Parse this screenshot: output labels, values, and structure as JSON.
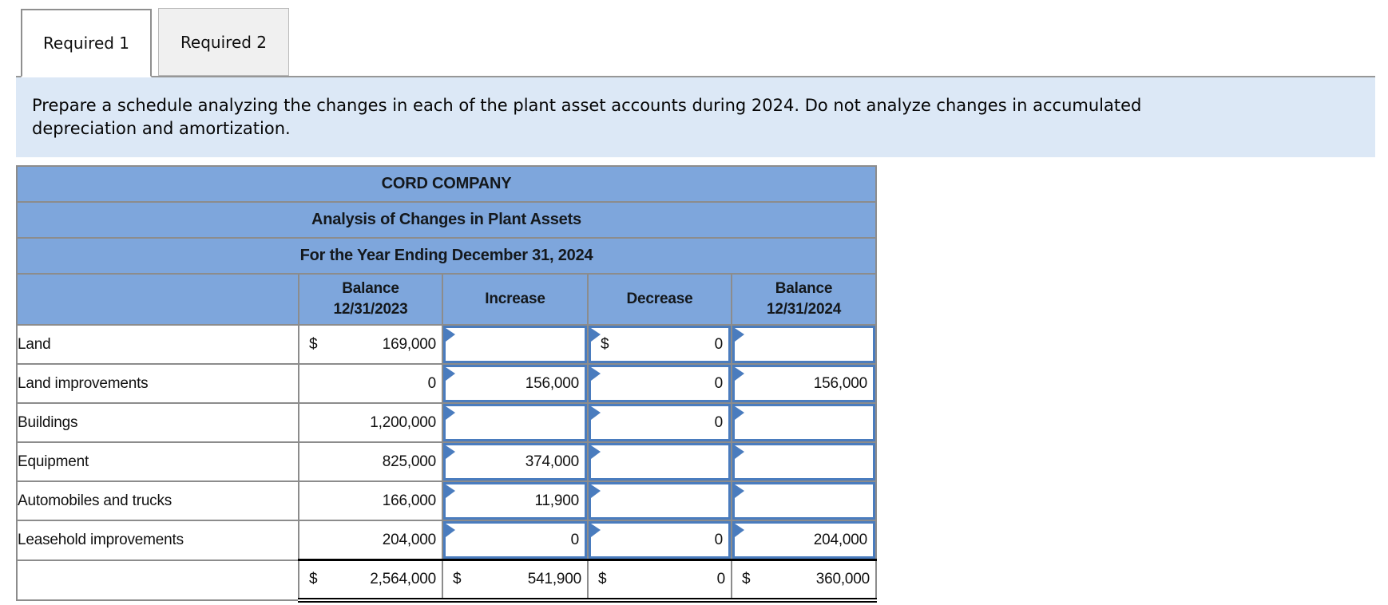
{
  "tabs": {
    "items": [
      {
        "label": "Required 1",
        "active": true
      },
      {
        "label": "Required 2",
        "active": false
      }
    ]
  },
  "instruction": {
    "text": "Prepare a schedule analyzing the changes in each of the plant asset accounts during 2024. Do not analyze changes in accumulated depreciation and amortization."
  },
  "colors": {
    "header_blue": "#7ea6dc",
    "instruction_bg": "#dce8f6",
    "input_border_blue": "#4a7cbe",
    "grid_gray": "#8c8c8c",
    "inactive_tab_bg": "#f0f0f0",
    "total_rule_black": "#000000"
  },
  "table": {
    "title_rows": [
      "CORD COMPANY",
      "Analysis of Changes in Plant Assets",
      "For the Year Ending December 31, 2024"
    ],
    "columns": [
      {
        "line1": "",
        "line2": ""
      },
      {
        "line1": "Balance",
        "line2": "12/31/2023"
      },
      {
        "line1": "Increase",
        "line2": ""
      },
      {
        "line1": "Decrease",
        "line2": ""
      },
      {
        "line1": "Balance",
        "line2": "12/31/2024"
      }
    ],
    "col_keys": [
      "balance-12-31-2023",
      "increase",
      "decrease",
      "balance-12-31-2024"
    ],
    "rows": [
      {
        "label": "Land",
        "cells": [
          {
            "kind": "static",
            "dollar": "$",
            "value": "169,000"
          },
          {
            "kind": "input",
            "dollar": "",
            "value": ""
          },
          {
            "kind": "input",
            "dollar": "$",
            "value": "0"
          },
          {
            "kind": "input",
            "dollar": "",
            "value": ""
          }
        ]
      },
      {
        "label": "Land improvements",
        "cells": [
          {
            "kind": "static",
            "dollar": "",
            "value": "0"
          },
          {
            "kind": "input",
            "dollar": "",
            "value": "156,000"
          },
          {
            "kind": "input",
            "dollar": "",
            "value": "0"
          },
          {
            "kind": "input",
            "dollar": "",
            "value": "156,000"
          }
        ]
      },
      {
        "label": "Buildings",
        "cells": [
          {
            "kind": "static",
            "dollar": "",
            "value": "1,200,000"
          },
          {
            "kind": "input",
            "dollar": "",
            "value": ""
          },
          {
            "kind": "input",
            "dollar": "",
            "value": "0"
          },
          {
            "kind": "input",
            "dollar": "",
            "value": ""
          }
        ]
      },
      {
        "label": "Equipment",
        "cells": [
          {
            "kind": "static",
            "dollar": "",
            "value": "825,000"
          },
          {
            "kind": "input",
            "dollar": "",
            "value": "374,000"
          },
          {
            "kind": "input",
            "dollar": "",
            "value": ""
          },
          {
            "kind": "input",
            "dollar": "",
            "value": ""
          }
        ]
      },
      {
        "label": "Automobiles and trucks",
        "cells": [
          {
            "kind": "static",
            "dollar": "",
            "value": "166,000"
          },
          {
            "kind": "input",
            "dollar": "",
            "value": "11,900"
          },
          {
            "kind": "input",
            "dollar": "",
            "value": ""
          },
          {
            "kind": "input",
            "dollar": "",
            "value": ""
          }
        ]
      },
      {
        "label": "Leasehold improvements",
        "cells": [
          {
            "kind": "static",
            "dollar": "",
            "value": "204,000"
          },
          {
            "kind": "input",
            "dollar": "",
            "value": "0"
          },
          {
            "kind": "input",
            "dollar": "",
            "value": "0"
          },
          {
            "kind": "input",
            "dollar": "",
            "value": "204,000"
          }
        ]
      }
    ],
    "total_row": {
      "label": "",
      "cells": [
        {
          "kind": "static",
          "dollar": "$",
          "value": "2,564,000"
        },
        {
          "kind": "static",
          "dollar": "$",
          "value": "541,900"
        },
        {
          "kind": "static",
          "dollar": "$",
          "value": "0"
        },
        {
          "kind": "static",
          "dollar": "$",
          "value": "360,000"
        }
      ]
    }
  }
}
